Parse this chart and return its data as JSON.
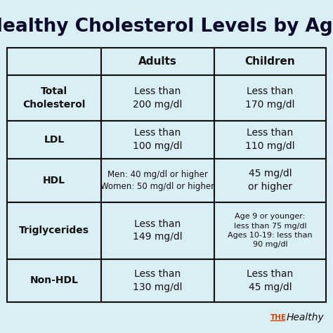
{
  "title": "Healthy Cholesterol Levels by Age",
  "bg_color": "#daeef5",
  "cell_bg": "#daeef5",
  "border_color": "#111111",
  "title_color": "#0a0a2a",
  "rows": [
    {
      "label": "Total\nCholesterol",
      "adults": "Less than\n200 mg/dl",
      "children": "Less than\n170 mg/dl"
    },
    {
      "label": "LDL",
      "adults": "Less than\n100 mg/dl",
      "children": "Less than\n110 mg/dl"
    },
    {
      "label": "HDL",
      "adults": "Men: 40 mg/dl or higher\nWomen: 50 mg/dl or higher",
      "children": "45 mg/dl\nor higher"
    },
    {
      "label": "Triglycerides",
      "adults": "Less than\n149 mg/dl",
      "children": "Age 9 or younger:\nless than 75 mg/dl\nAges 10-19: less than\n90 mg/dl"
    },
    {
      "label": "Non-HDL",
      "adults": "Less than\n130 mg/dl",
      "children": "Less than\n45 mg/dl"
    }
  ],
  "watermark_the": "THE",
  "watermark_healthy": "Healthy",
  "watermark_color_the": "#cc4400",
  "watermark_color_healthy": "#111111",
  "title_fontsize": 19,
  "header_fontsize": 11,
  "label_fontsize": 10,
  "cell_fontsize": 10,
  "hdl_adults_fontsize": 8.5,
  "trig_children_fontsize": 8.0
}
